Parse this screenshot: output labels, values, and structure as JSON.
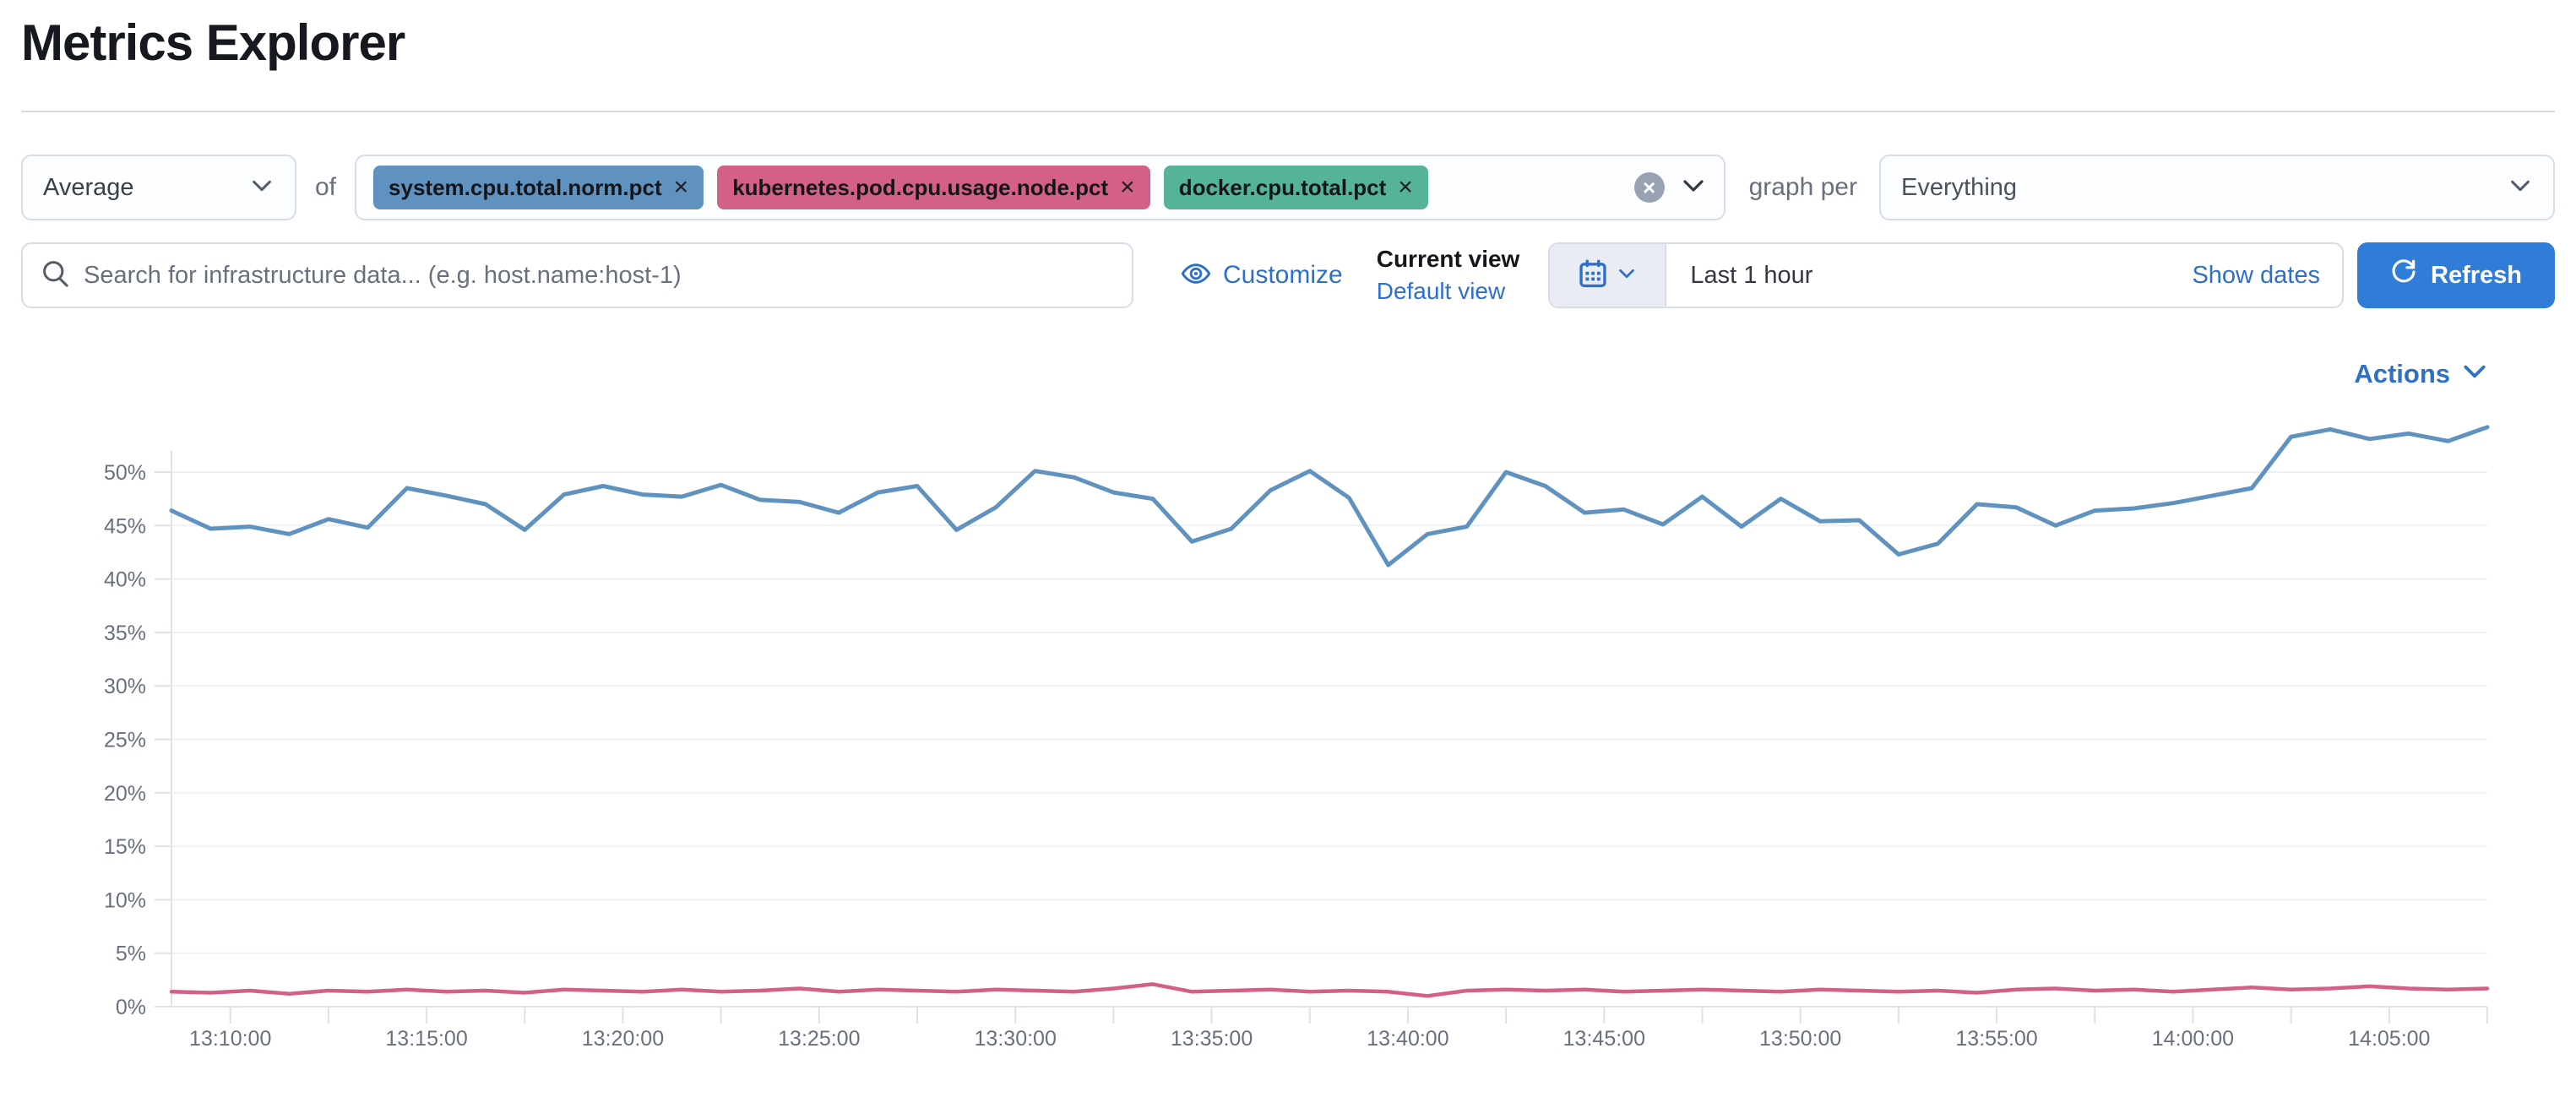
{
  "page": {
    "title": "Metrics Explorer"
  },
  "toolbar": {
    "aggregation_value": "Average",
    "of_label": "of",
    "metrics": [
      {
        "label": "system.cpu.total.norm.pct",
        "color": "#6092C0"
      },
      {
        "label": "kubernetes.pod.cpu.usage.node.pct",
        "color": "#D36086"
      },
      {
        "label": "docker.cpu.total.pct",
        "color": "#54B399"
      }
    ],
    "remove_icon": "×",
    "clear_icon": "×",
    "graph_per_label": "graph per",
    "graph_per_value": "Everything"
  },
  "search": {
    "placeholder": "Search for infrastructure data... (e.g. host.name:host-1)"
  },
  "view_controls": {
    "customize_label": "Customize",
    "current_view_label": "Current view",
    "view_name": "Default view"
  },
  "datepicker": {
    "value": "Last 1 hour",
    "show_dates_label": "Show dates",
    "refresh_label": "Refresh"
  },
  "actions_label": "Actions",
  "colors": {
    "link_blue": "#2e70c9",
    "button_blue": "#2f7dd9",
    "axis_text": "#69707d",
    "grid_line": "#eef1f5",
    "axis_line": "#dde1e8"
  },
  "chart_data": {
    "type": "line",
    "title": "",
    "xlabel": "",
    "ylabel": "",
    "y_unit": "%",
    "ylim": [
      0,
      57
    ],
    "grid": true,
    "legend": false,
    "x_domain": [
      "13:08:30",
      "14:07:30"
    ],
    "x_interval_seconds": 60,
    "x_minor_tick_seconds": 150,
    "x_tick_labels": [
      "13:10:00",
      "13:15:00",
      "13:20:00",
      "13:25:00",
      "13:30:00",
      "13:35:00",
      "13:40:00",
      "13:45:00",
      "13:50:00",
      "13:55:00",
      "14:00:00",
      "14:05:00"
    ],
    "y_ticks_pct": [
      0,
      5,
      10,
      15,
      20,
      25,
      30,
      35,
      40,
      45,
      50
    ],
    "series": [
      {
        "name": "system.cpu.total.norm.pct",
        "color": "#6092C0",
        "stroke_width": 5,
        "start": "13:08:30",
        "values": [
          46.4,
          44.7,
          44.9,
          44.2,
          45.6,
          44.8,
          48.5,
          47.8,
          47.0,
          44.6,
          47.9,
          48.7,
          47.9,
          47.7,
          48.8,
          47.4,
          47.2,
          46.2,
          48.1,
          48.7,
          44.6,
          46.7,
          50.1,
          49.5,
          48.1,
          47.5,
          43.5,
          44.7,
          48.3,
          50.1,
          47.6,
          41.3,
          44.2,
          44.9,
          50.0,
          48.7,
          46.2,
          46.5,
          45.1,
          47.7,
          44.9,
          47.5,
          45.4,
          45.5,
          42.3,
          43.3,
          47.0,
          46.7,
          45.0,
          46.4,
          46.6,
          47.1,
          47.8,
          48.5,
          53.3,
          54.0,
          53.1,
          53.6,
          52.9,
          54.2
        ]
      },
      {
        "name": "kubernetes.pod.cpu.usage.node.pct",
        "color": "#D36086",
        "stroke_width": 4.5,
        "start": "13:08:30",
        "values": [
          1.4,
          1.3,
          1.5,
          1.2,
          1.5,
          1.4,
          1.6,
          1.4,
          1.5,
          1.3,
          1.6,
          1.5,
          1.4,
          1.6,
          1.4,
          1.5,
          1.7,
          1.4,
          1.6,
          1.5,
          1.4,
          1.6,
          1.5,
          1.4,
          1.7,
          2.1,
          1.4,
          1.5,
          1.6,
          1.4,
          1.5,
          1.4,
          1.0,
          1.5,
          1.6,
          1.5,
          1.6,
          1.4,
          1.5,
          1.6,
          1.5,
          1.4,
          1.6,
          1.5,
          1.4,
          1.5,
          1.3,
          1.6,
          1.7,
          1.5,
          1.6,
          1.4,
          1.6,
          1.8,
          1.6,
          1.7,
          1.9,
          1.7,
          1.6,
          1.7
        ]
      }
    ]
  }
}
